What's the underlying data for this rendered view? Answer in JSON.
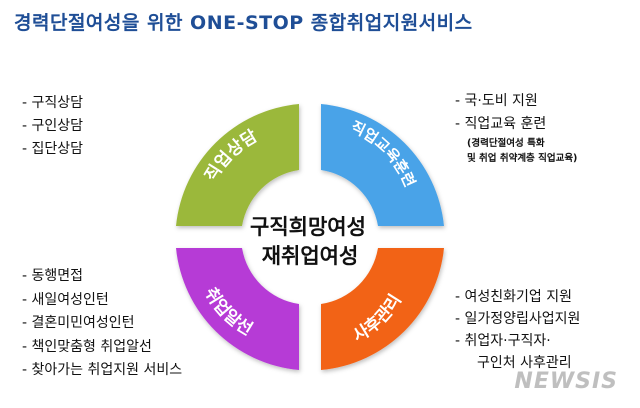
{
  "title": "경력단절여성을 위한 ONE-STOP 종합취업지원서비스",
  "center": {
    "line1": "구직희망여성",
    "line2": "재취업여성"
  },
  "quadrants": {
    "top_left": {
      "label": "직업상담",
      "color": "#9bb83a"
    },
    "top_right": {
      "label": "직업교육훈련",
      "color": "#4aa3e8"
    },
    "bottom_left": {
      "label": "취업알선",
      "color": "#b63ad6"
    },
    "bottom_right": {
      "label": "사후관리",
      "color": "#f26418"
    }
  },
  "lists": {
    "top_left": [
      "- 구직상담",
      "- 구인상담",
      "- 집단상담"
    ],
    "top_right": {
      "items": [
        "- 국·도비 지원",
        "- 직업교육 훈련"
      ],
      "notes": [
        "(경력단절여성 특화",
        "및 취업 취약계층 직업교육)"
      ]
    },
    "bottom_left": [
      "- 동행면접",
      "- 새일여성인턴",
      "- 결혼미민여성인턴",
      "- 책인맞춤형 취업알선",
      "- 찾아가는 취업지원 서비스"
    ],
    "bottom_right": [
      "- 여성친화기업 지원",
      "- 일가정양립사업지원",
      "- 취업자·구직자·",
      "구인처 사후관리"
    ]
  },
  "watermark": "NEWSIS"
}
